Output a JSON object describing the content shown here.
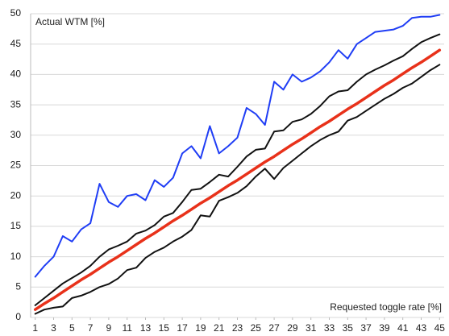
{
  "chart_data": {
    "type": "line",
    "y_label": "Actual WTM [%]",
    "x_label": "Requested toggle rate [%]",
    "x": [
      1,
      2,
      3,
      4,
      5,
      6,
      7,
      8,
      9,
      10,
      11,
      12,
      13,
      14,
      15,
      16,
      17,
      18,
      19,
      20,
      21,
      22,
      23,
      24,
      25,
      26,
      27,
      28,
      29,
      30,
      31,
      32,
      33,
      34,
      35,
      36,
      37,
      38,
      39,
      40,
      41,
      42,
      43,
      44,
      45
    ],
    "xlim": [
      0.5,
      45.5
    ],
    "xticks": [
      1,
      3,
      5,
      7,
      9,
      11,
      13,
      15,
      17,
      19,
      21,
      23,
      25,
      27,
      29,
      31,
      33,
      35,
      37,
      39,
      41,
      43,
      45
    ],
    "ylim": [
      0,
      50
    ],
    "yticks": [
      0,
      5,
      10,
      15,
      20,
      25,
      30,
      35,
      40,
      45,
      50
    ],
    "grid": true,
    "series": [
      {
        "color": "#1f3df5",
        "values": [
          6.7,
          8.5,
          10,
          13.4,
          12.5,
          14.5,
          15.5,
          22,
          19,
          18.2,
          20,
          20.3,
          19.3,
          22.6,
          21.5,
          23,
          27,
          28.2,
          26.2,
          31.5,
          27,
          28.2,
          29.6,
          34.5,
          33.5,
          31.7,
          38.8,
          37.5,
          40,
          38.8,
          39.5,
          40.5,
          42,
          44,
          42.6,
          45,
          46,
          47,
          47.2,
          47.4,
          48,
          49.3,
          49.5,
          49.5,
          49.8
        ]
      },
      {
        "color": "#111111",
        "values": [
          2.0,
          3.2,
          4.4,
          5.6,
          6.5,
          7.4,
          8.5,
          10,
          11.2,
          11.8,
          12.5,
          13.8,
          14.3,
          15.2,
          16.6,
          17.2,
          19,
          21,
          21.2,
          22.3,
          23.5,
          23.2,
          24.8,
          26.5,
          27.6,
          27.8,
          30.6,
          30.8,
          32.2,
          32.6,
          33.5,
          34.8,
          36.4,
          37.2,
          37.4,
          38.8,
          40,
          40.8,
          41.5,
          42.3,
          43,
          44.2,
          45.3,
          46,
          46.6
        ]
      },
      {
        "color": "#e8311a",
        "values": [
          1.3,
          2.3,
          3.2,
          4.2,
          5.2,
          6.2,
          7.1,
          8.1,
          9.1,
          10.0,
          11.0,
          12.0,
          13.0,
          13.9,
          14.9,
          15.9,
          16.8,
          17.8,
          18.8,
          19.7,
          20.7,
          21.7,
          22.6,
          23.6,
          24.6,
          25.6,
          26.5,
          27.5,
          28.5,
          29.4,
          30.4,
          31.4,
          32.3,
          33.3,
          34.3,
          35.2,
          36.2,
          37.2,
          38.2,
          39.1,
          40.1,
          41.1,
          42.0,
          43.0,
          44.0
        ]
      },
      {
        "color": "#111111",
        "values": [
          0.6,
          1.3,
          1.6,
          1.8,
          3.2,
          3.6,
          4.2,
          5,
          5.5,
          6.4,
          7.8,
          8.2,
          9.8,
          10.8,
          11.5,
          12.5,
          13.3,
          14.4,
          16.8,
          16.6,
          19.2,
          19.8,
          20.5,
          21.6,
          23.2,
          24.5,
          22.8,
          24.6,
          25.8,
          27,
          28.2,
          29.2,
          30,
          30.6,
          32.4,
          33,
          34,
          35,
          36,
          36.8,
          37.8,
          38.5,
          39.6,
          40.7,
          41.6
        ]
      }
    ]
  }
}
